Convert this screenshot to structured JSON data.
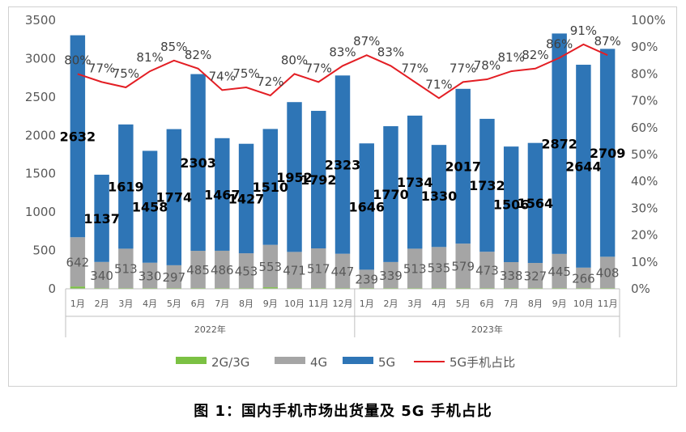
{
  "caption": "图 1：国内手机市场出货量及 5G 手机占比",
  "colors": {
    "c2g3g": "#7bc143",
    "c4g": "#a5a5a5",
    "c5g": "#2e75b6",
    "share": "#e31e24"
  },
  "chart_data": {
    "type": "bar",
    "stacked": true,
    "categories": [
      "1月",
      "2月",
      "3月",
      "4月",
      "5月",
      "6月",
      "7月",
      "8月",
      "9月",
      "10月",
      "11月",
      "12月",
      "1月",
      "2月",
      "3月",
      "4月",
      "5月",
      "6月",
      "7月",
      "8月",
      "9月",
      "10月",
      "11月"
    ],
    "year_groups": [
      {
        "label": "2022年",
        "start": 0,
        "end": 11
      },
      {
        "label": "2023年",
        "start": 12,
        "end": 22
      }
    ],
    "series": [
      {
        "name": "2G/3G",
        "key": "c2g3g",
        "values": [
          30,
          10,
          10,
          10,
          10,
          10,
          10,
          10,
          20,
          10,
          10,
          10,
          10,
          10,
          10,
          10,
          10,
          10,
          10,
          10,
          10,
          10,
          10
        ]
      },
      {
        "name": "4G",
        "key": "c4g",
        "labels_visible": true,
        "values": [
          642,
          340,
          513,
          330,
          297,
          485,
          486,
          453,
          553,
          471,
          517,
          447,
          239,
          339,
          513,
          535,
          579,
          473,
          338,
          327,
          445,
          266,
          408
        ]
      },
      {
        "name": "5G",
        "key": "c5g",
        "labels_visible": true,
        "values": [
          2632,
          1137,
          1619,
          1458,
          1774,
          2303,
          1467,
          1427,
          1510,
          1952,
          1792,
          2323,
          1646,
          1770,
          1734,
          1330,
          2017,
          1732,
          1506,
          1564,
          2872,
          2644,
          2709
        ]
      }
    ],
    "share_series": {
      "name": "5G手机占比",
      "values": [
        80,
        77,
        75,
        81,
        85,
        82,
        74,
        75,
        72,
        80,
        77,
        83,
        87,
        83,
        77,
        71,
        77,
        78,
        81,
        82,
        86,
        91,
        87
      ],
      "labels": [
        "80%",
        "77%",
        "75%",
        "81%",
        "85%",
        "82%",
        "74%",
        "75%",
        "72%",
        "80%",
        "77%",
        "83%",
        "87%",
        "83%",
        "77%",
        "71%",
        "77%",
        "78%",
        "81%",
        "82%",
        "86%",
        "91%",
        "87%"
      ]
    },
    "ylim": [
      0,
      3500
    ],
    "yticks": [
      "0",
      "500",
      "1000",
      "1500",
      "2000",
      "2500",
      "3000",
      "3500"
    ],
    "y2lim": [
      0,
      100
    ],
    "y2ticks": [
      "0%",
      "10%",
      "20%",
      "30%",
      "40%",
      "50%",
      "60%",
      "70%",
      "80%",
      "90%",
      "100%"
    ],
    "legend": [
      "2G/3G",
      "4G",
      "5G",
      "5G手机占比"
    ],
    "legend_position": "bottom",
    "grid": false
  }
}
